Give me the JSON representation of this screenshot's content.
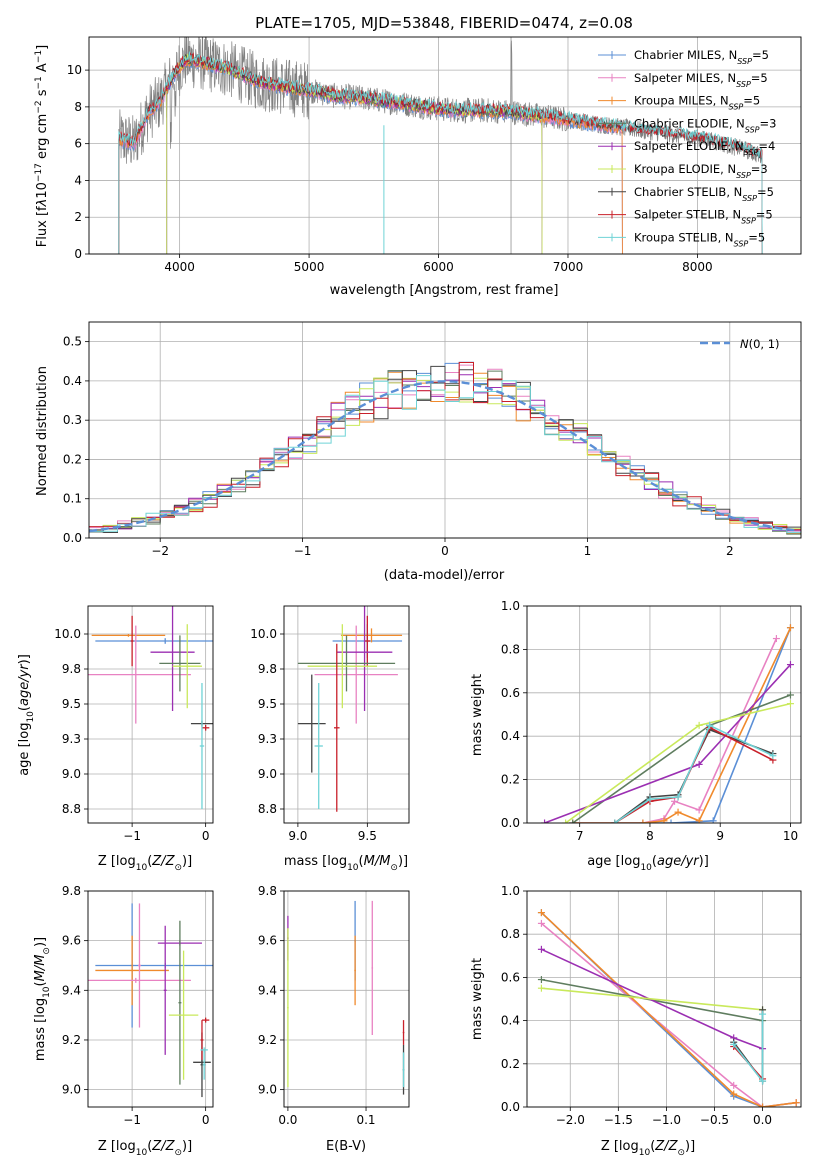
{
  "colors": {
    "chabrier_miles": "#5b8fd6",
    "salpeter_miles": "#e882c2",
    "kroupa_miles": "#f08a2c",
    "chabrier_elodie": "#5f7d5f",
    "salpeter_elodie": "#9b2fb2",
    "kroupa_elodie": "#c9e95b",
    "chabrier_stelib": "#444444",
    "salpeter_stelib": "#c8202a",
    "kroupa_stelib": "#6fd3d6",
    "data": "#808080",
    "normal": "#5b8fd6"
  },
  "chart_data": [
    {
      "id": "spectrum",
      "type": "line",
      "title": "PLATE=1705, MJD=53848, FIBERID=0474, z=0.08",
      "xlabel": "wavelength [Angstrom, rest frame]",
      "ylabel": "Flux [f_λ 10^-17 erg cm^-2 s^-1 A^-1]",
      "xlim": [
        3300,
        8800
      ],
      "ylim": [
        0,
        11.8
      ],
      "xticks": [
        4000,
        5000,
        6000,
        7000,
        8000
      ],
      "yticks": [
        0,
        2,
        4,
        6,
        8,
        10
      ],
      "legend_position": "upper right",
      "legend": [
        {
          "label": "Chabrier MILES, N_SSP=5",
          "color_key": "chabrier_miles"
        },
        {
          "label": "Salpeter MILES, N_SSP=5",
          "color_key": "salpeter_miles"
        },
        {
          "label": "Kroupa MILES, N_SSP=5",
          "color_key": "kroupa_miles"
        },
        {
          "label": "Chabrier ELODIE, N_SSP=3",
          "color_key": "chabrier_elodie"
        },
        {
          "label": "Salpeter ELODIE, N_SSP=4",
          "color_key": "salpeter_elodie"
        },
        {
          "label": "Kroupa ELODIE, N_SSP=3",
          "color_key": "kroupa_elodie"
        },
        {
          "label": "Chabrier STELIB, N_SSP=5",
          "color_key": "chabrier_stelib"
        },
        {
          "label": "Salpeter STELIB, N_SSP=5",
          "color_key": "salpeter_stelib"
        },
        {
          "label": "Kroupa STELIB, N_SSP=5",
          "color_key": "kroupa_stelib"
        }
      ],
      "model_continuum": {
        "x": [
          3530,
          3650,
          3750,
          3850,
          3950,
          4050,
          4200,
          4400,
          4600,
          4800,
          5000,
          5200,
          5400,
          5600,
          5800,
          6000,
          6200,
          6400,
          6600,
          6800,
          7000,
          7200,
          7400,
          7600,
          7800,
          8000,
          8200,
          8400,
          8500
        ],
        "y": [
          6.3,
          6.0,
          7.6,
          8.3,
          9.7,
          10.6,
          10.4,
          10.0,
          9.4,
          9.1,
          8.9,
          8.6,
          8.5,
          8.3,
          8.1,
          7.9,
          7.8,
          7.8,
          7.7,
          7.5,
          7.3,
          7.1,
          6.9,
          6.7,
          6.5,
          6.3,
          6.0,
          5.6,
          5.3
        ]
      }
    },
    {
      "id": "residuals",
      "type": "line",
      "xlabel": "(data-model)/error",
      "ylabel": "Normed distribution",
      "xlim": [
        -2.5,
        2.5
      ],
      "ylim": [
        0,
        0.55
      ],
      "xticks": [
        -2,
        -1,
        0,
        1,
        2
      ],
      "yticks": [
        0.0,
        0.1,
        0.2,
        0.3,
        0.4,
        0.5
      ],
      "legend_position": "upper right",
      "legend": [
        {
          "label": "N(0,1)",
          "color_key": "normal",
          "style": "dashed"
        }
      ],
      "bin_width": 0.1
    },
    {
      "id": "age_vs_Z",
      "type": "scatter",
      "xlabel": "Z [log10(Z/Z⊙)]",
      "ylabel": "age [log10(age/yr)]",
      "xlim": [
        -1.6,
        0.1
      ],
      "ylim": [
        8.65,
        10.2
      ],
      "xticks": [
        -1,
        0
      ],
      "yticks": [
        8.75,
        9.0,
        9.25,
        9.5,
        9.75,
        10.0
      ],
      "points": [
        {
          "color_key": "chabrier_miles",
          "x": -0.55,
          "xerr": 0.95,
          "y": 9.95,
          "yerr": 0.02
        },
        {
          "color_key": "kroupa_miles",
          "x": -1.05,
          "xerr": 0.5,
          "y": 9.99,
          "yerr": 0.01
        },
        {
          "color_key": "salpeter_miles",
          "x": -0.95,
          "xerr": 0.75,
          "y": 9.71,
          "yerr": 0.35
        },
        {
          "color_key": "salpeter_stelib",
          "x": -1.0,
          "xerr": 0.02,
          "y": 9.95,
          "yerr": 0.18
        },
        {
          "color_key": "salpeter_elodie",
          "x": -0.45,
          "xerr": 0.3,
          "y": 9.87,
          "yerr": 0.42
        },
        {
          "color_key": "chabrier_elodie",
          "x": -0.35,
          "xerr": 0.28,
          "y": 9.79,
          "yerr": 0.2
        },
        {
          "color_key": "kroupa_elodie",
          "x": -0.25,
          "xerr": 0.2,
          "y": 9.77,
          "yerr": 0.3
        },
        {
          "color_key": "chabrier_stelib",
          "x": -0.05,
          "xerr": 0.15,
          "y": 9.36,
          "yerr": 0.02
        },
        {
          "color_key": "salpeter_stelib",
          "x": 0.0,
          "xerr": 0.05,
          "y": 9.33,
          "yerr": 0.02
        },
        {
          "color_key": "kroupa_stelib",
          "x": -0.05,
          "xerr": 0.03,
          "y": 9.2,
          "yerr": 0.45
        }
      ]
    },
    {
      "id": "age_vs_mass",
      "type": "scatter",
      "xlabel": "mass [log10(M/M⊙)]",
      "xlim": [
        8.9,
        9.8
      ],
      "ylim": [
        8.65,
        10.2
      ],
      "xticks": [
        9.0,
        9.5
      ],
      "yticks": [
        8.75,
        9.0,
        9.25,
        9.5,
        9.75,
        10.0
      ],
      "points": [
        {
          "color_key": "chabrier_miles",
          "x": 9.5,
          "xerr": 0.25,
          "y": 9.95,
          "yerr": 0.12
        },
        {
          "color_key": "kroupa_miles",
          "x": 9.53,
          "xerr": 0.22,
          "y": 9.99,
          "yerr": 0.05
        },
        {
          "color_key": "salpeter_miles",
          "x": 9.42,
          "xerr": 0.3,
          "y": 9.71,
          "yerr": 0.35
        },
        {
          "color_key": "salpeter_stelib",
          "x": 9.5,
          "xerr": 0.02,
          "y": 9.95,
          "yerr": 0.18
        },
        {
          "color_key": "salpeter_elodie",
          "x": 9.48,
          "xerr": 0.2,
          "y": 9.87,
          "yerr": 0.42
        },
        {
          "color_key": "chabrier_elodie",
          "x": 9.35,
          "xerr": 0.35,
          "y": 9.79,
          "yerr": 0.2
        },
        {
          "color_key": "kroupa_elodie",
          "x": 9.32,
          "xerr": 0.25,
          "y": 9.77,
          "yerr": 0.3
        },
        {
          "color_key": "chabrier_stelib",
          "x": 9.1,
          "xerr": 0.1,
          "y": 9.36,
          "yerr": 0.35
        },
        {
          "color_key": "salpeter_stelib",
          "x": 9.28,
          "xerr": 0.02,
          "y": 9.33,
          "yerr": 0.6
        },
        {
          "color_key": "kroupa_stelib",
          "x": 9.15,
          "xerr": 0.03,
          "y": 9.2,
          "yerr": 0.45
        }
      ]
    },
    {
      "id": "weight_vs_age",
      "type": "line",
      "xlabel": "age [log10(age/yr)]",
      "ylabel": "mass weight",
      "xlim": [
        6.25,
        10.15
      ],
      "ylim": [
        0,
        1.0
      ],
      "xticks": [
        7,
        8,
        9,
        10
      ],
      "yticks": [
        0.0,
        0.2,
        0.4,
        0.6,
        0.8,
        1.0
      ],
      "series": [
        {
          "color_key": "chabrier_miles",
          "x": [
            6.9,
            7.9,
            8.3,
            8.9,
            10.0
          ],
          "y": [
            0,
            0,
            0,
            0.01,
            0.9
          ]
        },
        {
          "color_key": "salpeter_miles",
          "x": [
            6.9,
            7.9,
            8.2,
            8.35,
            8.7,
            9.8
          ],
          "y": [
            0,
            0,
            0.02,
            0.1,
            0.06,
            0.85
          ]
        },
        {
          "color_key": "kroupa_miles",
          "x": [
            6.9,
            7.9,
            8.2,
            8.4,
            8.7,
            10.0
          ],
          "y": [
            0,
            0,
            0.01,
            0.05,
            0.01,
            0.9
          ]
        },
        {
          "color_key": "chabrier_elodie",
          "x": [
            6.9,
            8.85,
            10.0
          ],
          "y": [
            0,
            0.45,
            0.59
          ]
        },
        {
          "color_key": "salpeter_elodie",
          "x": [
            6.5,
            8.7,
            10.0
          ],
          "y": [
            0,
            0.27,
            0.73
          ]
        },
        {
          "color_key": "kroupa_elodie",
          "x": [
            6.8,
            8.7,
            10.0
          ],
          "y": [
            0,
            0.45,
            0.55
          ]
        },
        {
          "color_key": "chabrier_stelib",
          "x": [
            7.5,
            8.0,
            8.4,
            8.85,
            9.75
          ],
          "y": [
            0,
            0.12,
            0.13,
            0.43,
            0.32
          ]
        },
        {
          "color_key": "salpeter_stelib",
          "x": [
            7.5,
            8.0,
            8.4,
            8.85,
            9.75
          ],
          "y": [
            0,
            0.1,
            0.12,
            0.44,
            0.29
          ]
        },
        {
          "color_key": "kroupa_stelib",
          "x": [
            7.5,
            8.0,
            8.4,
            8.85,
            9.75
          ],
          "y": [
            0,
            0.11,
            0.12,
            0.45,
            0.31
          ]
        }
      ]
    },
    {
      "id": "mass_vs_Z",
      "type": "scatter",
      "xlabel": "Z [log10(Z/Z⊙)]",
      "ylabel": "mass [log10(M/M⊙)]",
      "xlim": [
        -1.6,
        0.1
      ],
      "ylim": [
        8.93,
        9.8
      ],
      "xticks": [
        -1,
        0
      ],
      "yticks": [
        9.0,
        9.2,
        9.4,
        9.6,
        9.8
      ],
      "points": [
        {
          "color_key": "chabrier_miles",
          "x": -1.0,
          "xerr": 0.02,
          "y": 9.5,
          "yerr": 0.25
        },
        {
          "color_key": "chabrier_miles",
          "x": -0.55,
          "xerr": 0.95,
          "y": 9.5,
          "yerr": 0.01
        },
        {
          "color_key": "kroupa_miles",
          "x": -1.0,
          "xerr": 0.5,
          "y": 9.48,
          "yerr": 0.14
        },
        {
          "color_key": "salpeter_miles",
          "x": -0.9,
          "xerr": 0.02,
          "y": 9.5,
          "yerr": 0.25
        },
        {
          "color_key": "salpeter_miles",
          "x": -0.95,
          "xerr": 0.75,
          "y": 9.44,
          "yerr": 0.01
        },
        {
          "color_key": "salpeter_elodie",
          "x": -0.55,
          "xerr": 0.02,
          "y": 9.4,
          "yerr": 0.26
        },
        {
          "color_key": "salpeter_elodie",
          "x": -0.35,
          "xerr": 0.3,
          "y": 9.59,
          "yerr": 0.01
        },
        {
          "color_key": "chabrier_elodie",
          "x": -0.35,
          "xerr": 0.02,
          "y": 9.35,
          "yerr": 0.33
        },
        {
          "color_key": "kroupa_elodie",
          "x": -0.3,
          "xerr": 0.2,
          "y": 9.3,
          "yerr": 0.26
        },
        {
          "color_key": "chabrier_stelib",
          "x": -0.05,
          "xerr": 0.12,
          "y": 9.11,
          "yerr": 0.01
        },
        {
          "color_key": "chabrier_stelib",
          "x": -0.05,
          "xerr": 0.02,
          "y": 9.1,
          "yerr": 0.13
        },
        {
          "color_key": "salpeter_stelib",
          "x": 0.0,
          "xerr": 0.05,
          "y": 9.28,
          "yerr": 0.01
        },
        {
          "color_key": "salpeter_stelib",
          "x": -0.05,
          "xerr": 0.02,
          "y": 9.2,
          "yerr": 0.08
        },
        {
          "color_key": "kroupa_stelib",
          "x": -0.02,
          "xerr": 0.05,
          "y": 9.16,
          "yerr": 0.01
        },
        {
          "color_key": "kroupa_stelib",
          "x": -0.02,
          "xerr": 0.02,
          "y": 9.1,
          "yerr": 0.06
        }
      ]
    },
    {
      "id": "mass_vs_ebv",
      "type": "scatter",
      "xlabel": "E(B-V)",
      "xlim": [
        -0.005,
        0.155
      ],
      "ylim": [
        8.93,
        9.8
      ],
      "xticks": [
        0.0,
        0.1
      ],
      "yticks": [
        9.0,
        9.2,
        9.4,
        9.6,
        9.8
      ],
      "points": [
        {
          "color_key": "salpeter_elodie",
          "x": 0.0,
          "xerr": 0.001,
          "y": 9.61,
          "yerr": 0.09
        },
        {
          "color_key": "kroupa_elodie",
          "x": 0.0,
          "xerr": 0.001,
          "y": 9.33,
          "yerr": 0.32
        },
        {
          "color_key": "chabrier_miles",
          "x": 0.086,
          "xerr": 0.001,
          "y": 9.6,
          "yerr": 0.16
        },
        {
          "color_key": "kroupa_miles",
          "x": 0.086,
          "xerr": 0.001,
          "y": 9.48,
          "yerr": 0.14
        },
        {
          "color_key": "salpeter_miles",
          "x": 0.108,
          "xerr": 0.001,
          "y": 9.49,
          "yerr": 0.27
        },
        {
          "color_key": "salpeter_stelib",
          "x": 0.148,
          "xerr": 0.001,
          "y": 9.23,
          "yerr": 0.05
        },
        {
          "color_key": "chabrier_stelib",
          "x": 0.148,
          "xerr": 0.001,
          "y": 9.08,
          "yerr": 0.1
        },
        {
          "color_key": "kroupa_stelib",
          "x": 0.148,
          "xerr": 0.001,
          "y": 9.08,
          "yerr": 0.07
        }
      ]
    },
    {
      "id": "weight_vs_Z",
      "type": "line",
      "xlabel": "Z [log10(Z/Z⊙)]",
      "ylabel": "mass weight",
      "xlim": [
        -2.45,
        0.4
      ],
      "ylim": [
        0,
        1.0
      ],
      "xticks": [
        -2.0,
        -1.5,
        -1.0,
        -0.5,
        0.0
      ],
      "yticks": [
        0.0,
        0.2,
        0.4,
        0.6,
        0.8,
        1.0
      ],
      "series": [
        {
          "color_key": "chabrier_miles",
          "x": [
            -2.3,
            -0.3,
            0.0,
            0.35
          ],
          "y": [
            0.9,
            0.05,
            0.0,
            0.02
          ]
        },
        {
          "color_key": "salpeter_miles",
          "x": [
            -2.3,
            -0.3,
            0.0,
            0.35
          ],
          "y": [
            0.85,
            0.1,
            0.0,
            0.02
          ]
        },
        {
          "color_key": "kroupa_miles",
          "x": [
            -2.3,
            -0.3,
            0.0,
            0.35
          ],
          "y": [
            0.9,
            0.06,
            0.0,
            0.02
          ]
        },
        {
          "color_key": "chabrier_elodie",
          "x": [
            -2.3,
            0.0
          ],
          "y": [
            0.59,
            0.4
          ]
        },
        {
          "color_key": "salpeter_elodie",
          "x": [
            -2.3,
            -0.3,
            0.0
          ],
          "y": [
            0.73,
            0.32,
            0.27
          ]
        },
        {
          "color_key": "kroupa_elodie",
          "x": [
            -2.3,
            0.0
          ],
          "y": [
            0.55,
            0.45
          ]
        },
        {
          "color_key": "chabrier_stelib",
          "x": [
            -0.3,
            0.0,
            0.0
          ],
          "y": [
            0.3,
            0.12,
            0.45
          ]
        },
        {
          "color_key": "salpeter_stelib",
          "x": [
            -0.3,
            0.0
          ],
          "y": [
            0.28,
            0.13
          ]
        },
        {
          "color_key": "kroupa_stelib",
          "x": [
            -0.3,
            0.0,
            0.0
          ],
          "y": [
            0.29,
            0.12,
            0.43
          ]
        }
      ]
    }
  ]
}
